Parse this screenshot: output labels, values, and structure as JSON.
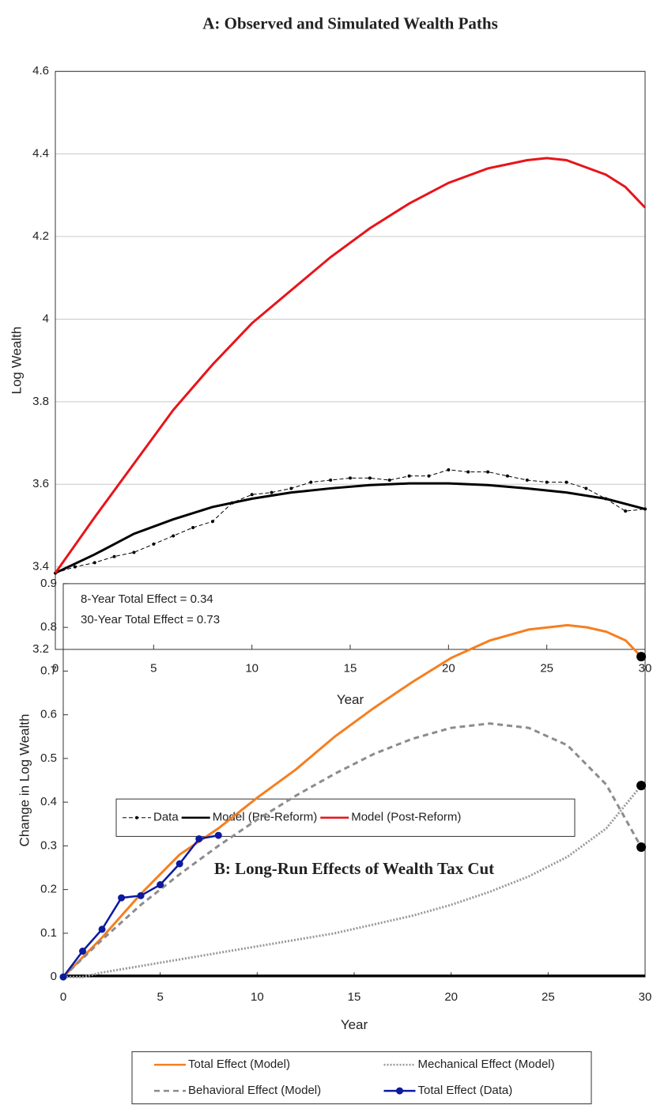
{
  "chart_data": [
    {
      "type": "line",
      "title": "A: Observed and Simulated Wealth Paths",
      "xlabel": "Year",
      "ylabel": "Log Wealth",
      "xlim": [
        0,
        30
      ],
      "xticks": [
        0,
        5,
        10,
        15,
        20,
        25,
        30
      ],
      "ylim": [
        3.2,
        4.6
      ],
      "yticks": [
        3.2,
        3.4,
        3.6,
        3.8,
        4,
        4.2,
        4.4,
        4.6
      ],
      "grid": true,
      "legend_position": "bottom",
      "legend_columns": 3,
      "series": [
        {
          "name": "Data",
          "color": "#000000",
          "style": "dashed",
          "marker": "dot",
          "x": [
            0,
            1,
            2,
            3,
            4,
            5,
            6,
            7,
            8,
            9,
            10,
            11,
            12,
            13,
            14,
            15,
            16,
            17,
            18,
            19,
            20,
            21,
            22,
            23,
            24,
            25,
            26,
            27,
            28,
            29,
            30
          ],
          "values": [
            3.385,
            3.4,
            3.41,
            3.425,
            3.435,
            3.455,
            3.475,
            3.495,
            3.51,
            3.555,
            3.575,
            3.58,
            3.59,
            3.605,
            3.61,
            3.615,
            3.615,
            3.61,
            3.62,
            3.62,
            3.635,
            3.63,
            3.63,
            3.62,
            3.61,
            3.605,
            3.605,
            3.59,
            3.565,
            3.535,
            3.54
          ]
        },
        {
          "name": "Model (Pre-Reform)",
          "color": "#000000",
          "style": "solid",
          "x": [
            0,
            2,
            4,
            6,
            8,
            10,
            12,
            14,
            16,
            18,
            20,
            22,
            24,
            26,
            28,
            30
          ],
          "values": [
            3.385,
            3.43,
            3.48,
            3.515,
            3.545,
            3.565,
            3.58,
            3.59,
            3.598,
            3.602,
            3.602,
            3.598,
            3.59,
            3.58,
            3.565,
            3.54
          ]
        },
        {
          "name": "Model (Post-Reform)",
          "color": "#e8141a",
          "style": "solid",
          "x": [
            0,
            2,
            4,
            6,
            8,
            10,
            12,
            14,
            16,
            18,
            20,
            22,
            24,
            25,
            26,
            28,
            29,
            30
          ],
          "values": [
            3.385,
            3.52,
            3.65,
            3.78,
            3.89,
            3.99,
            4.07,
            4.15,
            4.22,
            4.28,
            4.33,
            4.365,
            4.385,
            4.39,
            4.385,
            4.35,
            4.32,
            4.27
          ]
        }
      ]
    },
    {
      "type": "line",
      "title": "B: Long-Run Effects of Wealth Tax Cut",
      "xlabel": "Year",
      "ylabel": "Change in Log Wealth",
      "annotations": [
        "8-Year Total Effect = 0.34",
        "30-Year Total Effect = 0.73"
      ],
      "xlim": [
        0,
        30
      ],
      "xticks": [
        0,
        5,
        10,
        15,
        20,
        25,
        30
      ],
      "ylim": [
        0,
        0.9
      ],
      "yticks": [
        0,
        0.1,
        0.2,
        0.3,
        0.4,
        0.5,
        0.6,
        0.7,
        0.8,
        0.9
      ],
      "grid": false,
      "legend_position": "bottom",
      "legend_columns": 2,
      "series": [
        {
          "name": "Total Effect (Model)",
          "color": "#f57f20",
          "style": "solid",
          "end_marker": true,
          "x": [
            0,
            2,
            4,
            6,
            8,
            10,
            12,
            14,
            16,
            18,
            20,
            22,
            24,
            26,
            27,
            28,
            29,
            29.8
          ],
          "values": [
            0,
            0.09,
            0.19,
            0.28,
            0.34,
            0.41,
            0.475,
            0.55,
            0.615,
            0.675,
            0.73,
            0.77,
            0.795,
            0.805,
            0.8,
            0.79,
            0.77,
            0.733
          ]
        },
        {
          "name": "Behavioral Effect (Model)",
          "color": "#8c8c8c",
          "style": "dashed",
          "end_marker": true,
          "x": [
            0,
            2,
            4,
            6,
            8,
            10,
            12,
            14,
            16,
            18,
            20,
            22,
            24,
            26,
            28,
            29.8
          ],
          "values": [
            0,
            0.085,
            0.165,
            0.235,
            0.3,
            0.36,
            0.415,
            0.465,
            0.51,
            0.545,
            0.57,
            0.58,
            0.57,
            0.53,
            0.44,
            0.297
          ]
        },
        {
          "name": "Mechanical Effect (Model)",
          "color": "#999999",
          "style": "dotted",
          "end_marker": true,
          "x": [
            0,
            1,
            2,
            4,
            6,
            8,
            10,
            12,
            14,
            16,
            18,
            20,
            22,
            24,
            26,
            28,
            29.8
          ],
          "values": [
            0,
            0,
            0.01,
            0.025,
            0.04,
            0.055,
            0.07,
            0.085,
            0.1,
            0.12,
            0.14,
            0.165,
            0.195,
            0.23,
            0.275,
            0.34,
            0.438
          ]
        },
        {
          "name": "Total Effect (Data)",
          "color": "#0b1a9e",
          "style": "solid",
          "marker": "dot",
          "x": [
            0,
            1,
            2,
            3,
            4,
            5,
            6,
            7,
            8
          ],
          "values": [
            0,
            0.059,
            0.109,
            0.181,
            0.186,
            0.211,
            0.259,
            0.316,
            0.324
          ]
        }
      ]
    }
  ]
}
